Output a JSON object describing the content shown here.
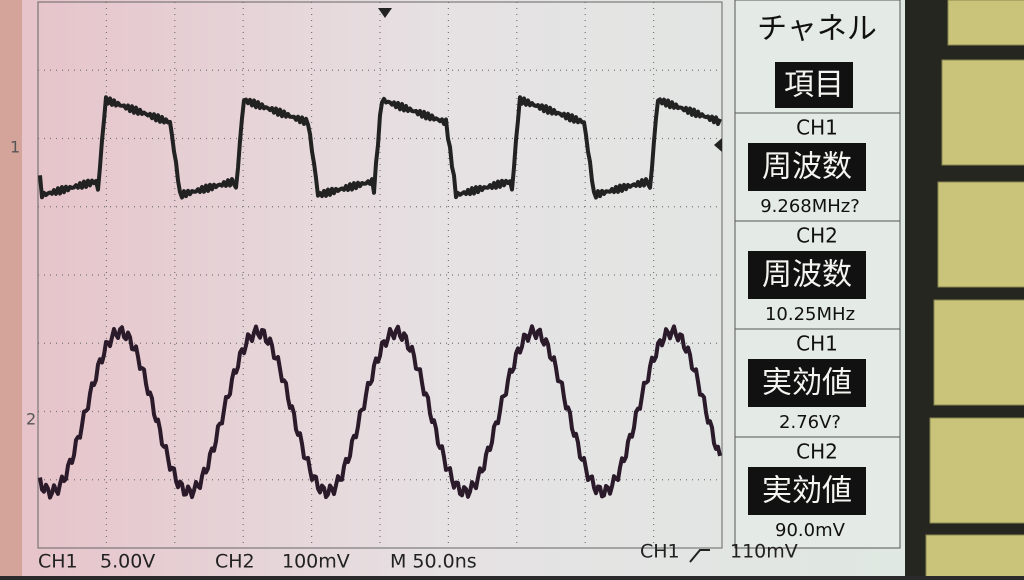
{
  "menu": {
    "title": "チャネル",
    "item": "項目",
    "measurements": [
      {
        "channel": "CH1",
        "label": "周波数",
        "value": "9.268MHz?"
      },
      {
        "channel": "CH2",
        "label": "周波数",
        "value": "10.25MHz"
      },
      {
        "channel": "CH1",
        "label": "実効値",
        "value": "2.76V?"
      },
      {
        "channel": "CH2",
        "label": "実効値",
        "value": "90.0mV"
      }
    ]
  },
  "markers": {
    "ch1": "1",
    "ch2": "2"
  },
  "status": {
    "ch1": "CH1",
    "ch1_scale": "5.00V",
    "ch2": "CH2",
    "ch2_scale": "100mV",
    "timebase": "M 50.0ns",
    "trigger_source": "CH1",
    "trigger_level": "110mV"
  }
}
